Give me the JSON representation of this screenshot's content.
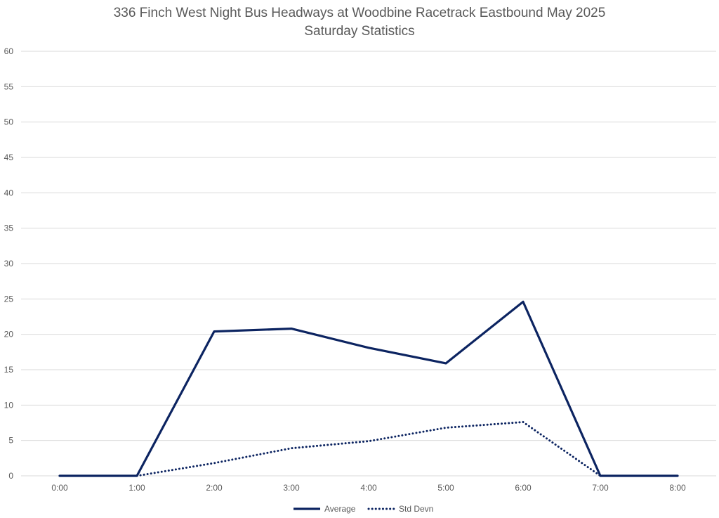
{
  "chart_data": {
    "type": "line",
    "title_lines": [
      "336 Finch West Night Bus Headways at Woodbine Racetrack Eastbound May 2025",
      "Saturday Statistics"
    ],
    "categories": [
      "0:00",
      "1:00",
      "2:00",
      "3:00",
      "4:00",
      "5:00",
      "6:00",
      "7:00",
      "8:00"
    ],
    "series": [
      {
        "name": "Average",
        "values": [
          0,
          0,
          20.4,
          20.8,
          18.1,
          15.9,
          24.6,
          0,
          0
        ],
        "color": "#0c2461",
        "style": "solid"
      },
      {
        "name": "Std Devn",
        "values": [
          null,
          0,
          1.8,
          3.9,
          4.9,
          6.8,
          7.6,
          0,
          null
        ],
        "color": "#0c2461",
        "style": "dotted"
      }
    ],
    "ylim": [
      0,
      60
    ],
    "yticks": [
      0,
      5,
      10,
      15,
      20,
      25,
      30,
      35,
      40,
      45,
      50,
      55,
      60
    ],
    "xlabel": "",
    "ylabel": "",
    "grid": true,
    "legend_position": "bottom"
  }
}
